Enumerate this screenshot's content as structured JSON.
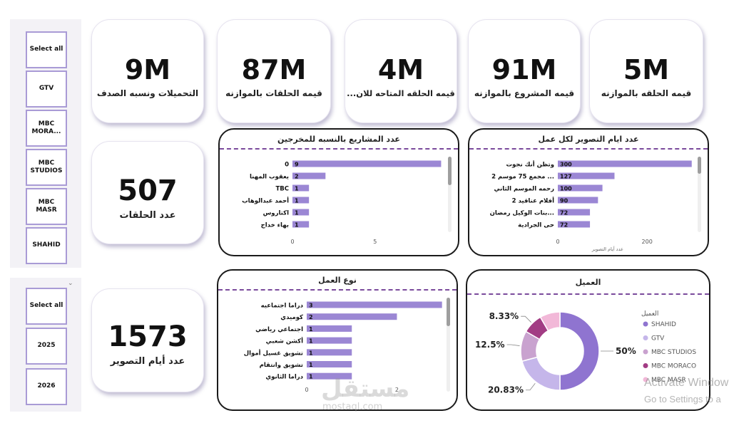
{
  "slicer_client": {
    "items": [
      {
        "label": "Select all"
      },
      {
        "label": "GTV"
      },
      {
        "label": "MBC\nMORA..."
      },
      {
        "label": "MBC\nSTUDIOS"
      },
      {
        "label": "MBC\nMASR"
      },
      {
        "label": "SHAHID"
      }
    ]
  },
  "slicer_year": {
    "items": [
      {
        "label": "Select all"
      },
      {
        "label": "2025"
      },
      {
        "label": "2026"
      }
    ],
    "dropdown_icon": "chevron-down-icon"
  },
  "kpis": {
    "downloads": {
      "value": "9M",
      "label": "التحميلات ونسبه الصدف"
    },
    "episodes_budget": {
      "value": "87M",
      "label": "قيمه الحلقات بالموازنه"
    },
    "available_episode": {
      "value": "4M",
      "label": "قيمه الحلقه المتاحه  للان..."
    },
    "project_budget": {
      "value": "91M",
      "label": "قيمه المشروع بالموازنه"
    },
    "episode_budget": {
      "value": "5M",
      "label": "قيمه الحلقه بالموازنه"
    },
    "episodes_count": {
      "value": "507",
      "label": "عدد الحلقات"
    },
    "shooting_days": {
      "value": "1573",
      "label": "عدد أيام التصوير"
    }
  },
  "chart_data": [
    {
      "type": "bar",
      "orientation": "horizontal",
      "title": "عدد المشاريع بالنسبه للمخرجين",
      "categories": [
        "0",
        "يعقوب المهنا",
        "TBC",
        "أحمد عبدالوهاب",
        "اكتاروس",
        "بهاء خداج"
      ],
      "values": [
        9,
        2,
        1,
        1,
        1,
        1
      ],
      "xticks": [
        "0",
        "5"
      ],
      "xlim": [
        0,
        9.5
      ],
      "bar_color": "#9b87d4"
    },
    {
      "type": "bar",
      "orientation": "horizontal",
      "title": "عدد ايام التصوير لكل عمل",
      "categories": [
        "وتظن أنك نجوت",
        "مجمع 75 موسم 2 ...",
        "رحمه الموسم الثاني",
        "أفلام عناقيد 2",
        "بنات الوكيل رمضان...",
        "حى الجرادية"
      ],
      "values": [
        300,
        127,
        100,
        90,
        72,
        72
      ],
      "xticks": [
        "0",
        "200"
      ],
      "xlabel": "عدد أيام التصوير",
      "xlim": [
        0,
        310
      ],
      "bar_color": "#9b87d4"
    },
    {
      "type": "bar",
      "orientation": "horizontal",
      "title": "نوع العمل",
      "categories": [
        "دراما اجتماعيه",
        "كوميدي",
        "اجتماعي رياضي",
        "أكشن شعبي",
        "تشويق غسيل أموال",
        "تشويق وانتقام",
        "دراما الثانوي"
      ],
      "values": [
        3,
        2,
        1,
        1,
        1,
        1,
        1
      ],
      "xticks": [
        "0",
        "2"
      ],
      "xlim": [
        0,
        3.1
      ],
      "bar_color": "#9b87d4"
    },
    {
      "type": "pie",
      "donut": true,
      "title": "العميل",
      "legend_title": "العميل",
      "legend_position": "right",
      "labels": [
        "SHAHID",
        "GTV",
        "MBC STUDIOS",
        "MBC MORACO",
        "MBC MASR"
      ],
      "values": [
        50,
        20.83,
        12.5,
        8.33,
        8.33
      ],
      "value_labels": [
        "50%",
        "20.83%",
        "12.5%",
        "8.33%",
        ""
      ],
      "colors": [
        "#8f74d0",
        "#c5b6ea",
        "#c9a2cf",
        "#a23c84",
        "#f2b8d8"
      ]
    }
  ],
  "overlay": {
    "watermark": "مستقل",
    "watermark_sub": "mostaql.com",
    "activate_line1": "Activate Windows",
    "activate_line2": "Go to Settings to a"
  }
}
